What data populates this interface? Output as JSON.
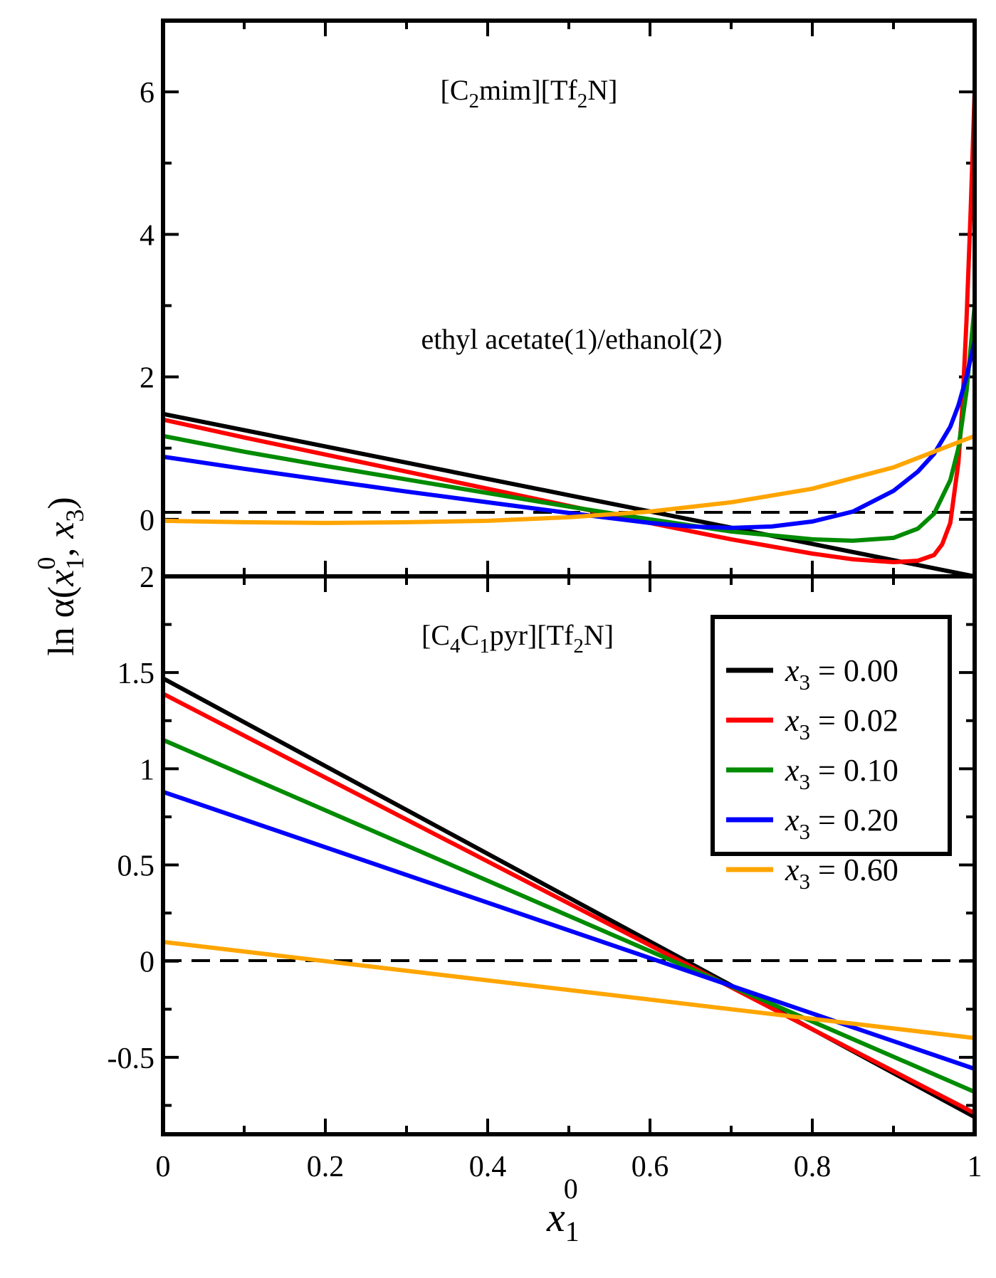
{
  "figure": {
    "y_axis_label": {
      "prefix": "ln α(",
      "var1": "x",
      "sub1": "1",
      "sup1": "0",
      "sep": ", ",
      "var2": "x",
      "sub2": "3",
      "suffix": ")"
    },
    "x_axis_label": {
      "var": "x",
      "sub": "1",
      "sup": "0"
    }
  },
  "chart_data": [
    {
      "type": "line",
      "panel": "top",
      "title": {
        "p1": "[C",
        "s1": "2",
        "p2": "mim][Tf",
        "s2": "2",
        "p3": "N]"
      },
      "subtitle": "ethyl acetate(1)/ethanol(2)",
      "xlim": [
        0,
        1
      ],
      "ylim": [
        -0.8,
        7
      ],
      "yticks": [
        {
          "v": 0,
          "label": "0"
        },
        {
          "v": 2,
          "label": "2"
        },
        {
          "v": 4,
          "label": "4"
        },
        {
          "v": 6,
          "label": "6"
        }
      ],
      "reference_line": {
        "y": 0,
        "style": "dashed"
      },
      "series": [
        {
          "name": "x3 = 0.00",
          "color": "#000000",
          "x": [
            0,
            0.5,
            1.0
          ],
          "y": [
            1.48,
            0.34,
            -0.8
          ]
        },
        {
          "name": "x3 = 0.02",
          "color": "#ff0000",
          "x": [
            0,
            0.1,
            0.2,
            0.3,
            0.4,
            0.5,
            0.6,
            0.7,
            0.8,
            0.85,
            0.9,
            0.93,
            0.95,
            0.96,
            0.97,
            0.98,
            0.985,
            0.99,
            0.995,
            1.0
          ],
          "y": [
            1.4,
            1.15,
            0.91,
            0.67,
            0.43,
            0.19,
            -0.05,
            -0.28,
            -0.48,
            -0.56,
            -0.6,
            -0.58,
            -0.5,
            -0.35,
            -0.05,
            0.8,
            1.6,
            2.8,
            4.3,
            6.0
          ]
        },
        {
          "name": "x3 = 0.10",
          "color": "#008b00",
          "x": [
            0,
            0.1,
            0.2,
            0.3,
            0.4,
            0.5,
            0.6,
            0.7,
            0.8,
            0.85,
            0.9,
            0.93,
            0.95,
            0.97,
            0.98,
            0.99,
            1.0
          ],
          "y": [
            1.17,
            0.95,
            0.75,
            0.56,
            0.37,
            0.18,
            0.0,
            -0.17,
            -0.28,
            -0.3,
            -0.26,
            -0.13,
            0.08,
            0.55,
            1.0,
            1.8,
            3.0
          ]
        },
        {
          "name": "x3 = 0.20",
          "color": "#0000ff",
          "x": [
            0,
            0.1,
            0.2,
            0.3,
            0.4,
            0.5,
            0.6,
            0.65,
            0.7,
            0.75,
            0.8,
            0.85,
            0.9,
            0.93,
            0.95,
            0.97,
            0.98,
            0.99,
            1.0
          ],
          "y": [
            0.88,
            0.71,
            0.55,
            0.39,
            0.24,
            0.09,
            -0.05,
            -0.1,
            -0.12,
            -0.1,
            -0.03,
            0.11,
            0.4,
            0.67,
            0.92,
            1.3,
            1.6,
            2.0,
            2.5
          ]
        },
        {
          "name": "x3 = 0.60",
          "color": "#ffa500",
          "x": [
            0,
            0.1,
            0.2,
            0.3,
            0.4,
            0.5,
            0.6,
            0.7,
            0.8,
            0.9,
            1.0
          ],
          "y": [
            -0.02,
            -0.04,
            -0.05,
            -0.04,
            -0.02,
            0.03,
            0.11,
            0.24,
            0.43,
            0.73,
            1.17
          ]
        }
      ]
    },
    {
      "type": "line",
      "panel": "bottom",
      "title": {
        "p1": "[C",
        "s1": "4",
        "p2": "C",
        "s2": "1",
        "p3": "pyr][Tf",
        "s3": "2",
        "p4": "N]"
      },
      "xlim": [
        0,
        1
      ],
      "ylim": [
        -0.9,
        2
      ],
      "xticks": [
        {
          "v": 0,
          "label": "0"
        },
        {
          "v": 0.2,
          "label": "0.2"
        },
        {
          "v": 0.4,
          "label": "0.4"
        },
        {
          "v": 0.6,
          "label": "0.6"
        },
        {
          "v": 0.8,
          "label": "0.8"
        },
        {
          "v": 1,
          "label": "1"
        }
      ],
      "yticks": [
        {
          "v": -0.5,
          "label": "-0.5"
        },
        {
          "v": 0,
          "label": "0"
        },
        {
          "v": 0.5,
          "label": "0.5"
        },
        {
          "v": 1,
          "label": "1"
        },
        {
          "v": 1.5,
          "label": "1.5"
        },
        {
          "v": 2,
          "label": "2"
        }
      ],
      "reference_line": {
        "y": 0,
        "style": "dashed"
      },
      "series": [
        {
          "name": "x3 = 0.00",
          "color": "#000000",
          "x": [
            0,
            1
          ],
          "y": [
            1.47,
            -0.81
          ]
        },
        {
          "name": "x3 = 0.02",
          "color": "#ff0000",
          "x": [
            0,
            1
          ],
          "y": [
            1.39,
            -0.79
          ]
        },
        {
          "name": "x3 = 0.10",
          "color": "#008b00",
          "x": [
            0,
            1
          ],
          "y": [
            1.15,
            -0.68
          ]
        },
        {
          "name": "x3 = 0.20",
          "color": "#0000ff",
          "x": [
            0,
            1
          ],
          "y": [
            0.88,
            -0.56
          ]
        },
        {
          "name": "x3 = 0.60",
          "color": "#ffa500",
          "x": [
            0,
            1
          ],
          "y": [
            0.1,
            -0.4
          ]
        }
      ],
      "legend": {
        "placement": "top-right",
        "entries": [
          {
            "var": "x",
            "sub": "3",
            "text": " = 0.00",
            "color": "#000000"
          },
          {
            "var": "x",
            "sub": "3",
            "text": " = 0.02",
            "color": "#ff0000"
          },
          {
            "var": "x",
            "sub": "3",
            "text": " = 0.10",
            "color": "#008b00"
          },
          {
            "var": "x",
            "sub": "3",
            "text": " = 0.20",
            "color": "#0000ff"
          },
          {
            "var": "x",
            "sub": "3",
            "text": " = 0.60",
            "color": "#ffa500"
          }
        ]
      }
    }
  ]
}
